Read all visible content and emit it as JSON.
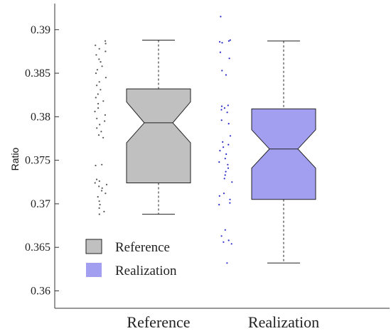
{
  "chart_data": {
    "type": "boxplot",
    "title": "",
    "xlabel": "",
    "ylabel": "Ratio",
    "ylim": [
      0.358,
      0.393
    ],
    "yticks": [
      0.36,
      0.365,
      0.37,
      0.375,
      0.38,
      0.385,
      0.39
    ],
    "ytick_labels": [
      "0.36",
      "0.365",
      "0.37",
      "0.375",
      "0.38",
      "0.385",
      "0.39"
    ],
    "categories": [
      "Reference",
      "Realization"
    ],
    "grid": false,
    "legend_position": "bottom-left",
    "series": [
      {
        "name": "Reference",
        "color": "#c0c0c0",
        "point_color": "#555555",
        "whisker_low": 0.3688,
        "q1": 0.3724,
        "notch_low": 0.377,
        "median": 0.3793,
        "notch_high": 0.3817,
        "q3": 0.3832,
        "whisker_high": 0.3888,
        "points": [
          0.3887,
          0.3884,
          0.3882,
          0.3878,
          0.3875,
          0.3871,
          0.3866,
          0.3863,
          0.3858,
          0.3854,
          0.385,
          0.3845,
          0.384,
          0.3836,
          0.3831,
          0.3826,
          0.3822,
          0.3818,
          0.3815,
          0.381,
          0.3806,
          0.3802,
          0.3798,
          0.3795,
          0.3791,
          0.3787,
          0.3783,
          0.3779,
          0.3776,
          0.3745,
          0.3744,
          0.3728,
          0.3726,
          0.3724,
          0.3722,
          0.372,
          0.3718,
          0.3715,
          0.3712,
          0.3708,
          0.3703,
          0.3699,
          0.3695,
          0.3691,
          0.3688
        ]
      },
      {
        "name": "Realization",
        "color": "#a29ef0",
        "point_color": "#2b2bcc",
        "whisker_low": 0.3632,
        "q1": 0.3705,
        "notch_low": 0.3741,
        "median": 0.3763,
        "notch_high": 0.3785,
        "q3": 0.3809,
        "whisker_high": 0.3887,
        "points": [
          0.3915,
          0.3888,
          0.3887,
          0.3886,
          0.3885,
          0.3874,
          0.3867,
          0.3853,
          0.3848,
          0.3813,
          0.3812,
          0.381,
          0.3808,
          0.3805,
          0.3796,
          0.3792,
          0.3778,
          0.3771,
          0.3768,
          0.3765,
          0.3761,
          0.3757,
          0.3752,
          0.3748,
          0.3745,
          0.3741,
          0.3737,
          0.3733,
          0.3729,
          0.3725,
          0.3712,
          0.3709,
          0.3705,
          0.3701,
          0.3699,
          0.367,
          0.3663,
          0.3658,
          0.3656,
          0.3654,
          0.3632
        ]
      }
    ]
  }
}
